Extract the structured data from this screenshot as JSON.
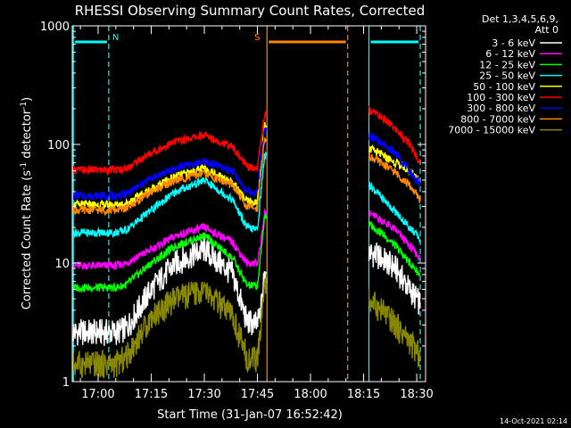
{
  "chart_data": {
    "type": "line",
    "title": "RHESSI Observing Summary Count Rates, Corrected",
    "xlabel": "Start Time (31-Jan-07 16:52:42)",
    "ylabel_main": "Corrected Count Rate (s",
    "ylabel_sup1": "-1",
    "ylabel_mid": " detector",
    "ylabel_sup2": "-1",
    "ylabel_end": ")",
    "yscale": "log",
    "ylim": [
      1,
      1000
    ],
    "xlim_minutes": [
      1012.7,
      1112.5
    ],
    "x_ticks": [
      {
        "label": "17:00",
        "minutes": 1020
      },
      {
        "label": "17:15",
        "minutes": 1035
      },
      {
        "label": "17:30",
        "minutes": 1050
      },
      {
        "label": "17:45",
        "minutes": 1065
      },
      {
        "label": "18:00",
        "minutes": 1080
      },
      {
        "label": "18:15",
        "minutes": 1095
      },
      {
        "label": "18:30",
        "minutes": 1110
      }
    ],
    "y_ticks": [
      {
        "label": "1",
        "value": 1
      },
      {
        "label": "10",
        "value": 10
      },
      {
        "label": "100",
        "value": 100
      },
      {
        "label": "1000",
        "value": 1000
      }
    ],
    "legend": {
      "placement": "right",
      "header_line1": "Det 1,3,4,5,6,9,",
      "header_line2": "Att 0"
    },
    "series": [
      {
        "name": "3 - 6 keV",
        "color": "#ffffff",
        "x": [
          1013,
          1020,
          1025,
          1028,
          1035,
          1042,
          1050,
          1058,
          1062,
          1065,
          1066,
          1067,
          1096,
          1100,
          1104,
          1108,
          1111
        ],
        "y": [
          2.6,
          2.6,
          2.6,
          2.8,
          6,
          10,
          13,
          8,
          3.2,
          3.0,
          4,
          8,
          12.5,
          11,
          9,
          6,
          4.5
        ]
      },
      {
        "name": "6 - 12 keV",
        "color": "#ff00ff",
        "x": [
          1013,
          1020,
          1025,
          1028,
          1035,
          1042,
          1050,
          1058,
          1062,
          1065,
          1066,
          1067,
          1096,
          1100,
          1104,
          1108,
          1111
        ],
        "y": [
          9.5,
          9.5,
          9.5,
          10,
          13,
          17,
          20,
          15,
          10,
          10,
          15,
          26,
          27,
          23,
          19,
          14,
          11
        ]
      },
      {
        "name": "12 - 25 keV",
        "color": "#00ff00",
        "x": [
          1013,
          1020,
          1025,
          1028,
          1035,
          1042,
          1050,
          1058,
          1062,
          1065,
          1066,
          1067,
          1096,
          1100,
          1104,
          1108,
          1111
        ],
        "y": [
          6.2,
          6.2,
          6.2,
          6.6,
          10,
          14,
          17,
          11,
          6.5,
          6.4,
          12,
          25,
          22,
          18,
          14,
          10,
          8
        ]
      },
      {
        "name": "25 - 50 keV",
        "color": "#00ffff",
        "x": [
          1013,
          1020,
          1025,
          1028,
          1035,
          1042,
          1050,
          1058,
          1062,
          1065,
          1066,
          1067,
          1096,
          1100,
          1104,
          1108,
          1111
        ],
        "y": [
          18,
          18,
          18,
          19,
          28,
          40,
          50,
          34,
          20,
          19,
          40,
          80,
          48,
          36,
          27,
          20,
          16
        ]
      },
      {
        "name": "50 - 100 keV",
        "color": "#ffff00",
        "x": [
          1013,
          1020,
          1025,
          1028,
          1035,
          1042,
          1050,
          1058,
          1062,
          1065,
          1066,
          1067,
          1096,
          1100,
          1104,
          1108,
          1111
        ],
        "y": [
          31,
          31,
          31,
          32,
          42,
          54,
          63,
          48,
          33,
          32,
          75,
          150,
          95,
          82,
          70,
          60,
          50
        ]
      },
      {
        "name": "100 - 300 keV",
        "color": "#ff0000",
        "x": [
          1013,
          1020,
          1025,
          1028,
          1035,
          1042,
          1050,
          1058,
          1062,
          1065,
          1066,
          1067,
          1096,
          1100,
          1104,
          1108,
          1111
        ],
        "y": [
          61,
          61,
          61,
          63,
          85,
          106,
          120,
          95,
          65,
          63,
          110,
          180,
          200,
          170,
          135,
          100,
          70
        ]
      },
      {
        "name": "300 - 800 keV",
        "color": "#0000ff",
        "x": [
          1013,
          1020,
          1025,
          1028,
          1035,
          1042,
          1050,
          1058,
          1062,
          1065,
          1066,
          1067,
          1096,
          1100,
          1104,
          1108,
          1111
        ],
        "y": [
          37,
          37,
          37,
          38,
          52,
          63,
          72,
          60,
          40,
          39,
          80,
          130,
          120,
          105,
          85,
          60,
          45
        ]
      },
      {
        "name": "800 - 7000 keV",
        "color": "#ff8800",
        "x": [
          1013,
          1020,
          1025,
          1028,
          1035,
          1042,
          1050,
          1058,
          1062,
          1065,
          1066,
          1067,
          1096,
          1100,
          1104,
          1108,
          1111
        ],
        "y": [
          28,
          28,
          28,
          29,
          40,
          50,
          57,
          45,
          30,
          29,
          60,
          110,
          82,
          70,
          58,
          45,
          34
        ]
      },
      {
        "name": "7000 - 15000 keV",
        "color": "#888800",
        "x": [
          1013,
          1020,
          1025,
          1028,
          1035,
          1042,
          1050,
          1058,
          1062,
          1065,
          1066,
          1067,
          1096,
          1100,
          1104,
          1108,
          1111
        ],
        "y": [
          1.4,
          1.4,
          1.4,
          1.6,
          3.5,
          5,
          5.8,
          3.5,
          1.6,
          1.5,
          3,
          7,
          5,
          4,
          3,
          2.2,
          1.6
        ]
      }
    ],
    "flags": [
      {
        "label": "N",
        "color": "#00ffff",
        "start": 1013.0,
        "end": 1023.0
      },
      {
        "label": "",
        "color": "#00ffff",
        "start": 1096.5,
        "end": 1111.0
      },
      {
        "label": "S",
        "color": "#ff8800",
        "start": 1067.7,
        "end": 1090.5
      }
    ],
    "vlines": [
      {
        "minutes": 1067.7,
        "color": "#ff8800",
        "style": "solid"
      },
      {
        "minutes": 1090.5,
        "color": "#ff8800",
        "style": "dashed"
      },
      {
        "minutes": 1013.0,
        "color": "#00ffff",
        "style": "solid"
      },
      {
        "minutes": 1023.0,
        "color": "#00ffff",
        "style": "dashed"
      },
      {
        "minutes": 1096.5,
        "color": "#00ffff",
        "style": "solid"
      },
      {
        "minutes": 1111.0,
        "color": "#00ffff",
        "style": "dashed"
      }
    ],
    "gaps": [
      [
        1067.7,
        1096.5
      ]
    ],
    "timestamp": "14-Oct-2021 02:14"
  }
}
